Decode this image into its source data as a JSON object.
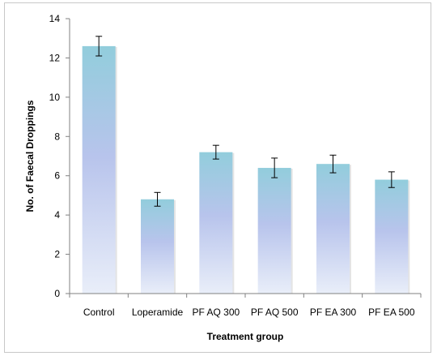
{
  "chart_data": {
    "type": "bar",
    "title": "",
    "xlabel": "Treatment group",
    "ylabel": "No. of Faecal Droppings",
    "categories": [
      "Control",
      "Loperamide",
      "PF AQ 300",
      "PF AQ 500",
      "PF EA 300",
      "PF EA 500"
    ],
    "values": [
      12.6,
      4.8,
      7.2,
      6.4,
      6.6,
      5.8
    ],
    "error": [
      0.5,
      0.35,
      0.35,
      0.5,
      0.45,
      0.4
    ],
    "ylim": [
      0,
      14
    ],
    "yticks": [
      0,
      2,
      4,
      6,
      8,
      10,
      12,
      14
    ],
    "grid": false,
    "legend": "none",
    "colors": {
      "bar_top": "#92cddc",
      "bar_mid": "#b8c4ec",
      "bar_bottom": "#e9eef9",
      "axis": "#808080",
      "error": "#000000"
    }
  }
}
